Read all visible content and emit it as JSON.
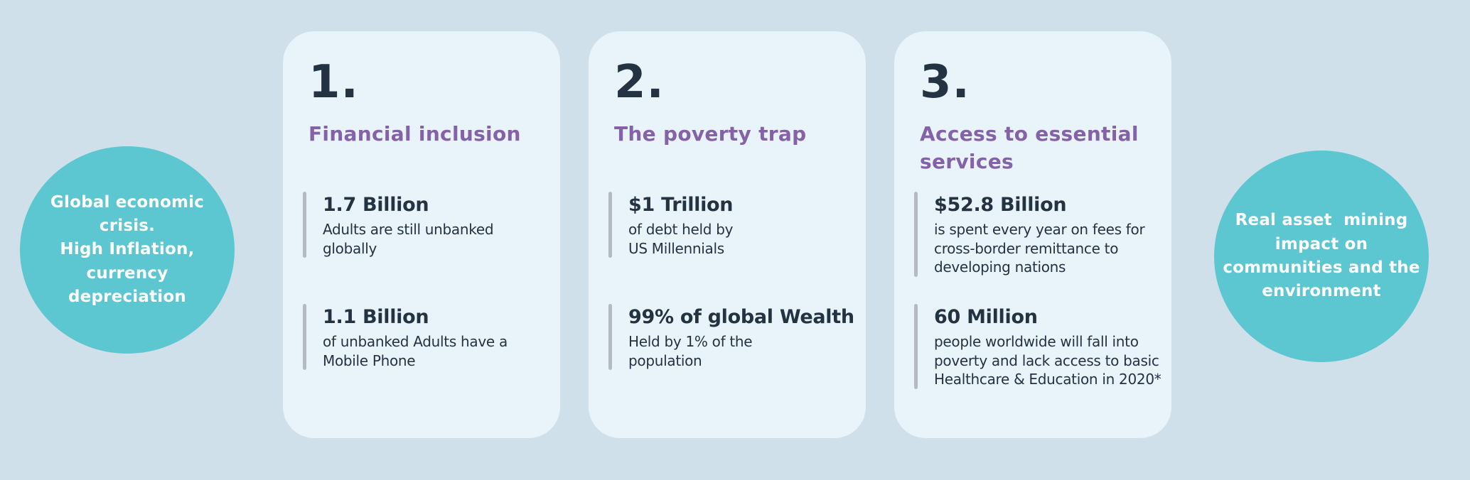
{
  "palette": {
    "background": "#cfe0eb",
    "card_background": "#e8f3fa",
    "teal": "#5cc6d1",
    "purple": "#8561a8",
    "dark_text": "#243342",
    "bar_gray": "#b3bac2",
    "white_text": "#ffffff"
  },
  "left_bubble": {
    "text": "Global economic\ncrisis.\nHigh Inflation,\ncurrency\ndepreciation"
  },
  "right_bubble": {
    "text": "Real asset  mining\nimpact on\ncommunities and the\nenvironment"
  },
  "cards": [
    {
      "number": "1.",
      "title": "Financial inclusion",
      "stats": [
        {
          "value": "1.7 Billion",
          "desc": "Adults are still unbanked\nglobally"
        },
        {
          "value": "1.1 Billion",
          "desc": "of unbanked Adults have a\nMobile Phone"
        }
      ]
    },
    {
      "number": "2.",
      "title": "The poverty trap",
      "stats": [
        {
          "value": "$1 Trillion",
          "desc": "of debt held by\nUS Millennials"
        },
        {
          "value": "99% of global Wealth",
          "desc": "Held by 1% of the\npopulation"
        }
      ]
    },
    {
      "number": "3.",
      "title": "Access to essential\nservices",
      "stats": [
        {
          "value": "$52.8 Billion",
          "desc": "is spent every year on fees for\ncross-border remittance to\ndeveloping nations"
        },
        {
          "value": "60 Million",
          "desc": "people worldwide will fall into\npoverty and lack access to basic\nHealthcare & Education in 2020*"
        }
      ]
    }
  ]
}
